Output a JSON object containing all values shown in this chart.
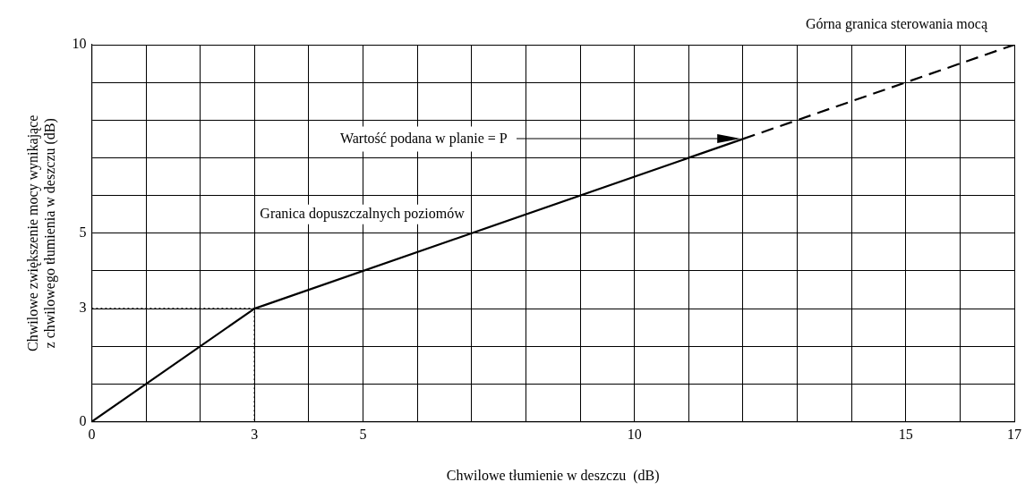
{
  "chart_data": {
    "type": "line",
    "xlabel": "Chwilowe tłumienie w deszczu  (dB)",
    "ylabel": "Chwilowe zwiększenie mocy wynikające\nz chwilowego tłumienia w deszczu (dB)",
    "series": [
      {
        "x": [
          0,
          3,
          12
        ],
        "values": [
          0,
          3,
          7.5
        ],
        "color": "#000000",
        "line_style": "solid"
      },
      {
        "x": [
          12,
          17
        ],
        "values": [
          7.5,
          10
        ],
        "color": "#000000",
        "line_style": "dashed"
      },
      {
        "x": [
          0,
          3,
          3
        ],
        "values": [
          3,
          3,
          0
        ],
        "color": "#000000",
        "line_style": "dotted"
      }
    ],
    "xlim": [
      0,
      17
    ],
    "xticks": [
      0,
      {
        "value": 1,
        "label": null
      },
      {
        "value": 2,
        "label": null
      },
      3,
      {
        "value": 4,
        "label": null
      },
      5,
      {
        "value": 6,
        "label": null
      },
      {
        "value": 7,
        "label": null
      },
      {
        "value": 8,
        "label": null
      },
      {
        "value": 9,
        "label": null
      },
      10,
      {
        "value": 11,
        "label": null
      },
      {
        "value": 12,
        "label": null
      },
      {
        "value": 13,
        "label": null
      },
      {
        "value": 14,
        "label": null
      },
      15,
      {
        "value": 16,
        "label": null
      },
      17
    ],
    "ylim": [
      0,
      10
    ],
    "yticks": [
      0,
      {
        "value": 1,
        "label": null
      },
      {
        "value": 2,
        "label": null
      },
      3,
      {
        "value": 4,
        "label": null
      },
      5,
      {
        "value": 6,
        "label": null
      },
      {
        "value": 7,
        "label": null
      },
      {
        "value": 8,
        "label": null
      },
      {
        "value": 9,
        "label": null
      },
      10
    ],
    "grid": true,
    "legend": false,
    "marker": "none",
    "annotations": [
      "Górna granica sterowania mocą",
      "Wartość podana w planie = P",
      "Granica dopuszczalnych poziomów"
    ]
  }
}
